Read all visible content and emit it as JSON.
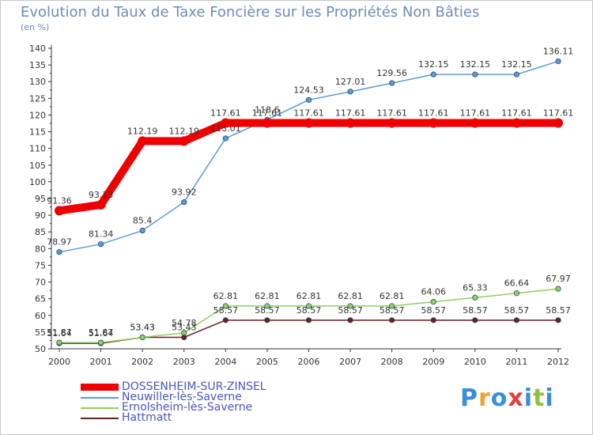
{
  "header": {
    "title": "Evolution du Taux de Taxe Foncière sur les Propriétés Non Bâties",
    "subtitle": "(en %)"
  },
  "logo": {
    "text": "Proxiti",
    "colors": [
      "#3a8fd8",
      "#f0a030",
      "#3a8fd8",
      "#e04040",
      "#3a8fd8",
      "#90c040",
      "#3a8fd8"
    ]
  },
  "chart_data": {
    "type": "line",
    "x": [
      "2000",
      "2001",
      "2002",
      "2003",
      "2004",
      "2005",
      "2006",
      "2007",
      "2008",
      "2009",
      "2010",
      "2011",
      "2012"
    ],
    "ylim": [
      50,
      140
    ],
    "yticks": [
      50,
      55,
      60,
      65,
      70,
      75,
      80,
      85,
      90,
      95,
      100,
      105,
      110,
      115,
      120,
      125,
      130,
      135,
      140
    ],
    "grid": false,
    "legend_position": "bottom-left",
    "series": [
      {
        "name": "DOSSENHEIM-SUR-ZINSEL",
        "color": "#ee0000",
        "values": [
          91.36,
          93.13,
          112.19,
          112.19,
          117.61,
          117.61,
          117.61,
          117.61,
          117.61,
          117.61,
          117.61,
          117.61,
          117.61
        ],
        "labels": [
          "91.36",
          "93.13",
          "112.19",
          "112.19",
          "117.61",
          "117.61",
          "117.61",
          "117.61",
          "117.61",
          "117.61",
          "117.61",
          "117.61",
          "117.61"
        ]
      },
      {
        "name": "Neuwiller-lès-Saverne",
        "color": "#5b9bd5",
        "values": [
          78.97,
          81.34,
          85.4,
          93.92,
          113.01,
          118.6,
          124.53,
          127.01,
          129.56,
          132.15,
          132.15,
          132.15,
          136.11
        ],
        "labels": [
          "78.97",
          "81.34",
          "85.4",
          "93.92",
          "113.01",
          "118.6",
          "124.53",
          "127.01",
          "129.56",
          "132.15",
          "132.15",
          "132.15",
          "136.11"
        ]
      },
      {
        "name": "Ernolsheim-lès-Saverne",
        "color": "#90d060",
        "values": [
          51.87,
          51.87,
          53.43,
          54.78,
          62.81,
          62.81,
          62.81,
          62.81,
          62.81,
          64.06,
          65.33,
          66.64,
          67.97
        ],
        "labels": [
          "51.87",
          "51.87",
          "53.43",
          "54.78",
          "62.81",
          "62.81",
          "62.81",
          "62.81",
          "62.81",
          "64.06",
          "65.33",
          "66.64",
          "67.97"
        ]
      },
      {
        "name": "Hattmatt",
        "color": "#6b1f1f",
        "values": [
          51.64,
          51.64,
          53.43,
          53.43,
          58.57,
          58.57,
          58.57,
          58.57,
          58.57,
          58.57,
          58.57,
          58.57,
          58.57
        ],
        "labels": [
          "51.64",
          "51.64",
          "53.43",
          "53.43",
          "58.57",
          "58.57",
          "58.57",
          "58.57",
          "58.57",
          "58.57",
          "58.57",
          "58.57",
          "58.57"
        ]
      }
    ]
  }
}
